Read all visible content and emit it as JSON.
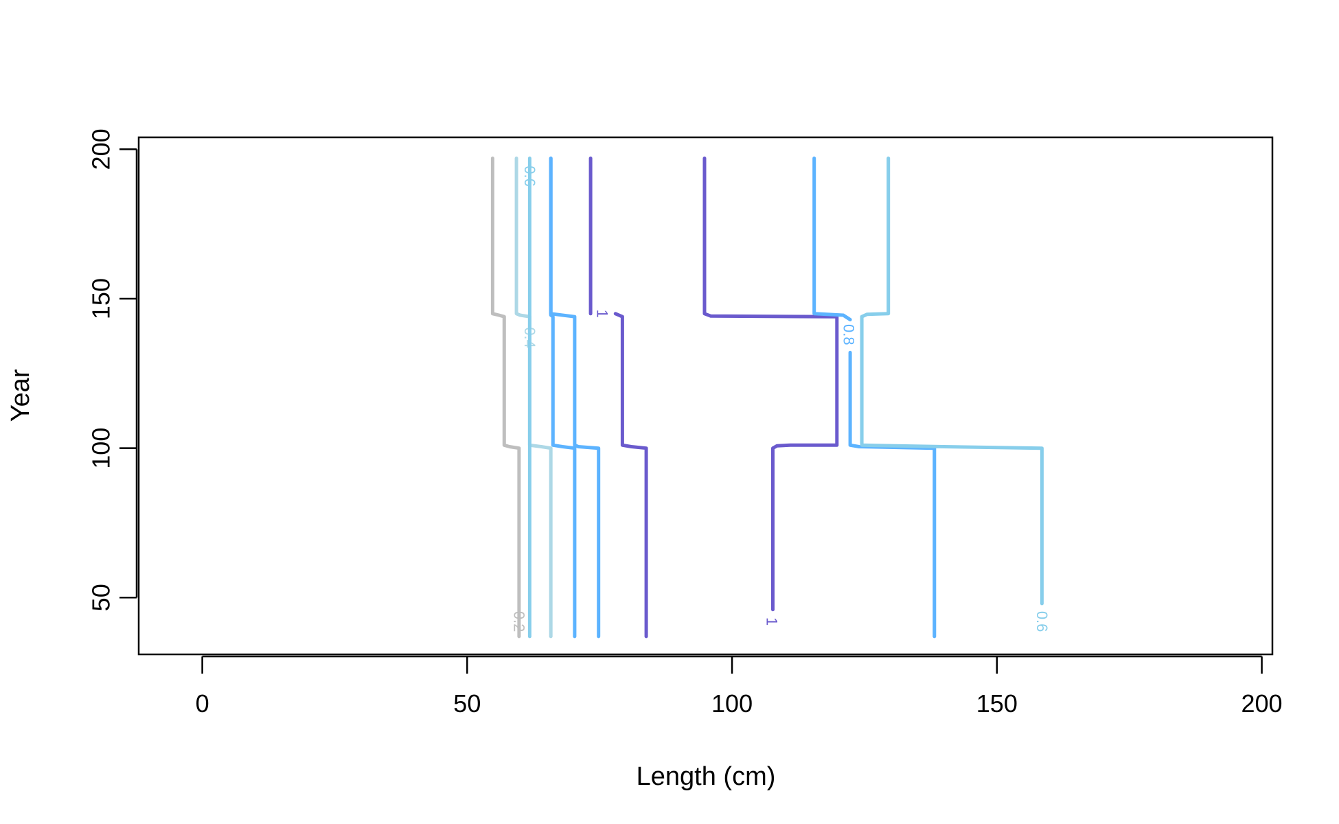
{
  "chart_data": {
    "type": "line",
    "subtype": "contour",
    "title": "",
    "xlabel": "Length (cm)",
    "ylabel": "Year",
    "xlim": [
      -12,
      202
    ],
    "ylim": [
      31,
      204
    ],
    "x_ticks": [
      0,
      50,
      100,
      150,
      200
    ],
    "y_ticks": [
      50,
      100,
      150,
      200
    ],
    "grid": false,
    "legend": "none",
    "series": [
      {
        "label": "0.2",
        "color": "#BEBEBE",
        "label_pos": [
          59.8,
          42
        ],
        "points": [
          [
            59.8,
            37
          ],
          [
            59.8,
            100
          ],
          [
            58,
            100.5
          ],
          [
            57,
            101
          ],
          [
            57,
            144
          ],
          [
            56,
            144.5
          ],
          [
            54.8,
            145
          ],
          [
            54.8,
            197
          ]
        ]
      },
      {
        "label": "0.4",
        "color": "#ADD8E6",
        "label_pos": [
          61.8,
          137
        ],
        "points": [
          [
            65.8,
            37
          ],
          [
            65.8,
            100
          ],
          [
            64,
            100.5
          ],
          [
            61.8,
            101
          ],
          [
            61.8,
            144
          ],
          [
            60,
            144.5
          ],
          [
            59.3,
            145
          ],
          [
            59.3,
            197
          ]
        ]
      },
      {
        "label": "0.6",
        "color": "#87CEEB",
        "label_pos": [
          61.8,
          191
        ],
        "points": [
          [
            61.8,
            37
          ],
          [
            61.8,
            197
          ]
        ]
      },
      {
        "label": "",
        "color": "#5CB3FF",
        "label_pos": null,
        "points": [
          [
            70.3,
            37
          ],
          [
            70.3,
            100
          ],
          [
            68,
            100.5
          ],
          [
            66.2,
            101
          ],
          [
            66.2,
            144
          ],
          [
            65.8,
            144.5
          ],
          [
            65.8,
            197
          ]
        ]
      },
      {
        "label": "",
        "color": "#5CB3FF",
        "label_pos": null,
        "points": [
          [
            74.8,
            37
          ],
          [
            74.8,
            100
          ],
          [
            71,
            100.5
          ],
          [
            70.3,
            101
          ],
          [
            70.3,
            144
          ],
          [
            68,
            144.5
          ],
          [
            65.8,
            145
          ],
          [
            65.8,
            197
          ]
        ]
      },
      {
        "label": "1",
        "color": "#6A5ACD",
        "label_pos": [
          75.5,
          145
        ],
        "points": [
          [
            83.8,
            37
          ],
          [
            83.8,
            100
          ],
          [
            81,
            100.5
          ],
          [
            79.3,
            101
          ],
          [
            79.3,
            144
          ],
          [
            78,
            145
          ]
        ]
      },
      {
        "label": "",
        "color": "#6A5ACD",
        "label_pos": null,
        "points": [
          [
            73.3,
            145
          ],
          [
            73.3,
            197
          ]
        ]
      },
      {
        "label": "1",
        "color": "#6A5ACD",
        "label_pos": [
          107.5,
          42
        ],
        "points": [
          [
            107.7,
            46
          ],
          [
            107.7,
            100
          ],
          [
            108.5,
            100.8
          ],
          [
            111,
            101
          ],
          [
            119.8,
            101
          ],
          [
            119.8,
            144
          ],
          [
            96,
            144.2
          ],
          [
            94.8,
            145
          ],
          [
            94.8,
            197
          ]
        ]
      },
      {
        "label": "0.8",
        "color": "#5CB3FF",
        "label_pos": [
          122,
          138
        ],
        "points": [
          [
            138.2,
            37
          ],
          [
            138.2,
            100
          ],
          [
            124,
            100.5
          ],
          [
            122.3,
            101
          ],
          [
            122.3,
            132
          ]
        ]
      },
      {
        "label": "",
        "color": "#5CB3FF",
        "label_pos": null,
        "points": [
          [
            122.3,
            143
          ],
          [
            121,
            144.5
          ],
          [
            115.5,
            145
          ],
          [
            115.5,
            197
          ]
        ]
      },
      {
        "label": "0.6",
        "color": "#87CEEB",
        "label_pos": [
          158.5,
          42
        ],
        "points": [
          [
            158.5,
            48
          ],
          [
            158.5,
            100
          ],
          [
            140,
            100.5
          ],
          [
            124.5,
            101
          ],
          [
            124.5,
            144
          ],
          [
            125.5,
            144.8
          ],
          [
            129.5,
            145
          ],
          [
            129.5,
            197
          ]
        ]
      }
    ]
  }
}
